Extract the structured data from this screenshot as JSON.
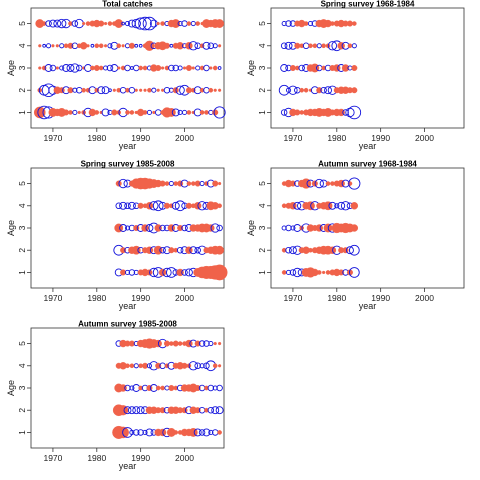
{
  "chart_data": [
    {
      "type": "scatter",
      "title": "Total catches",
      "xlabel": "year",
      "ylabel": "Age",
      "xlim": [
        1965,
        2009
      ],
      "ylim": [
        0.3,
        5.7
      ],
      "xticks": [
        1970,
        1980,
        1990,
        2000
      ],
      "yticks": [
        1,
        2,
        3,
        4,
        5
      ],
      "year_range": [
        1967,
        2008
      ],
      "symbols": [
        "negative: filled red",
        "positive: open blue"
      ],
      "series": [
        {
          "age": 5,
          "residuals": [
            -0.6,
            -0.3,
            0.4,
            0.5,
            0.5,
            0.6,
            0.6,
            -0.3,
            0.4,
            0.6,
            -0.2,
            -0.3,
            -0.4,
            -0.5,
            -0.4,
            -0.2,
            -0.3,
            -0.3,
            -0.6,
            0.2,
            0.3,
            0.5,
            0.6,
            0.8,
            0.9,
            0.9,
            0.5,
            -0.2,
            -0.3,
            0.3,
            -0.5,
            -0.6,
            0.3,
            0.4,
            -0.3,
            0.3,
            -0.3,
            -0.2,
            -0.6,
            -0.5,
            -0.6,
            -0.6
          ]
        },
        {
          "age": 4,
          "residuals": [
            -0.2,
            0.2,
            0.3,
            -0.2,
            -0.2,
            0.3,
            -0.3,
            -0.4,
            0.4,
            -0.3,
            -0.5,
            -0.2,
            0.2,
            -0.3,
            -0.3,
            -0.2,
            0.3,
            0.5,
            -0.3,
            -0.2,
            0.3,
            -0.4,
            0.2,
            0.2,
            -0.3,
            -0.7,
            0.4,
            -0.5,
            -0.6,
            -0.4,
            0.2,
            -0.4,
            -0.5,
            0.3,
            -0.5,
            0.6,
            0.4,
            -0.3,
            0.5,
            0.4,
            0.3,
            -0.2
          ]
        },
        {
          "age": 3,
          "residuals": [
            -0.2,
            -0.3,
            0.5,
            0.4,
            -0.2,
            0.3,
            0.5,
            0.5,
            0.6,
            0.4,
            -0.2,
            0.5,
            -0.3,
            -0.4,
            -0.3,
            0.3,
            0.4,
            0.5,
            -0.2,
            -0.3,
            0.4,
            0.2,
            0.4,
            -0.3,
            -0.3,
            0.3,
            -0.5,
            -0.4,
            -0.2,
            -0.3,
            0.4,
            0.4,
            0.3,
            -0.2,
            -0.4,
            -0.2,
            0.3,
            -0.3,
            0.4,
            -0.2,
            -0.3,
            0.2
          ]
        },
        {
          "age": 2,
          "residuals": [
            -0.3,
            0.7,
            0.9,
            0.6,
            -0.5,
            -0.4,
            0.5,
            -0.4,
            0.3,
            0.4,
            -0.3,
            -0.3,
            0.5,
            -0.3,
            0.5,
            0.5,
            0.2,
            -0.2,
            -0.3,
            0.4,
            -0.3,
            0.4,
            -0.2,
            -0.2,
            -0.2,
            -0.3,
            0.3,
            -0.2,
            -0.2,
            0.4,
            0.3,
            -0.4,
            0.6,
            0.7,
            -0.4,
            -0.3,
            0.5,
            -0.3,
            0.4,
            -0.3,
            -0.2,
            -0.2
          ]
        },
        {
          "age": 1,
          "residuals": [
            -0.8,
            0.9,
            0.8,
            -0.6,
            -0.5,
            -0.6,
            -0.4,
            -0.3,
            0.3,
            -0.2,
            -0.3,
            0.6,
            -0.5,
            -0.3,
            -0.2,
            0.5,
            0.3,
            -0.4,
            -0.3,
            0.6,
            -0.3,
            -0.3,
            -0.2,
            -0.5,
            -0.3,
            0.3,
            -0.2,
            0.4,
            -0.3,
            -0.7,
            -0.6,
            0.5,
            0.3,
            0.3,
            -0.3,
            -0.2,
            0.5,
            -0.3,
            -0.3,
            0.3,
            -0.4,
            0.8
          ]
        }
      ]
    },
    {
      "type": "scatter",
      "title": "Spring survey 1968-1984",
      "xlabel": "year",
      "ylabel": "Age",
      "xlim": [
        1965,
        2009
      ],
      "ylim": [
        0.3,
        5.7
      ],
      "xticks": [
        1970,
        1980,
        1990,
        2000
      ],
      "yticks": [
        1,
        2,
        3,
        4,
        5
      ],
      "year_range": [
        1968,
        1984
      ],
      "symbols": [
        "negative: filled red",
        "positive: open blue"
      ],
      "series": [
        {
          "age": 5,
          "residuals": [
            0.3,
            0.4,
            0.4,
            -0.4,
            -0.5,
            -0.3,
            0.3,
            0.4,
            -0.5,
            -0.6,
            -0.5,
            -0.3,
            -0.4,
            -0.5,
            -0.4,
            -0.4,
            -0.3
          ]
        },
        {
          "age": 4,
          "residuals": [
            0.4,
            0.5,
            0.5,
            -0.4,
            -0.3,
            0.4,
            -0.3,
            -0.3,
            0.3,
            -0.3,
            -0.3,
            0.6,
            0.7,
            -0.5,
            0.5,
            -0.3,
            0.3
          ]
        },
        {
          "age": 3,
          "residuals": [
            0.5,
            0.4,
            -0.4,
            -0.3,
            0.4,
            0.5,
            -0.5,
            -0.6,
            0.4,
            -0.3,
            0.4,
            -0.4,
            -0.5,
            0.5,
            -0.5,
            0.3,
            -0.4
          ]
        },
        {
          "age": 2,
          "residuals": [
            0.7,
            0.3,
            0.6,
            0.4,
            -0.3,
            -0.3,
            -0.2,
            0.5,
            -0.4,
            0.4,
            0.5,
            0.6,
            -0.4,
            -0.5,
            -0.5,
            -0.4,
            -0.4
          ]
        },
        {
          "age": 1,
          "residuals": [
            0.4,
            0.6,
            -0.5,
            -0.4,
            -0.3,
            -0.4,
            -0.5,
            -0.5,
            -0.6,
            -0.5,
            -0.6,
            -0.4,
            -0.5,
            -0.5,
            0.4,
            0.6,
            0.9
          ]
        }
      ]
    },
    {
      "type": "scatter",
      "title": "Spring survey 1985-2008",
      "xlabel": "year",
      "ylabel": "Age",
      "xlim": [
        1965,
        2009
      ],
      "ylim": [
        0.3,
        5.7
      ],
      "xticks": [
        1970,
        1980,
        1990,
        2000
      ],
      "yticks": [
        1,
        2,
        3,
        4,
        5
      ],
      "year_range": [
        1985,
        2008
      ],
      "symbols": [
        "negative: filled red",
        "positive: open blue"
      ],
      "series": [
        {
          "age": 5,
          "residuals": [
            -0.4,
            0.6,
            0.5,
            -0.4,
            -0.7,
            -0.8,
            -0.8,
            -0.7,
            -0.6,
            -0.5,
            -0.4,
            -0.3,
            0.3,
            -0.3,
            -0.4,
            0.5,
            -0.3,
            -0.3,
            -0.4,
            0.3,
            -0.3,
            0.5,
            -0.4,
            -0.2
          ]
        },
        {
          "age": 4,
          "residuals": [
            0.4,
            0.5,
            0.4,
            0.5,
            0.4,
            -0.4,
            -0.3,
            -0.5,
            0.6,
            0.7,
            0.5,
            -0.4,
            -0.3,
            0.5,
            0.7,
            0.4,
            -0.4,
            -0.3,
            -0.5,
            0.6,
            0.5,
            -0.6,
            -0.5,
            -0.3
          ]
        },
        {
          "age": 3,
          "residuals": [
            -0.6,
            0.5,
            0.3,
            0.4,
            -0.4,
            0.5,
            -0.5,
            0.5,
            0.7,
            -0.5,
            0.4,
            0.4,
            -0.5,
            0.5,
            -0.4,
            0.4,
            0.5,
            -0.5,
            -0.5,
            -0.6,
            -0.6,
            -0.5,
            0.6,
            0.4
          ]
        },
        {
          "age": 2,
          "residuals": [
            0.7,
            -0.4,
            0.4,
            -0.5,
            -0.6,
            0.4,
            -0.4,
            -0.5,
            0.5,
            -0.6,
            0.4,
            0.5,
            -0.4,
            -0.3,
            0.4,
            0.5,
            -0.5,
            0.5,
            0.4,
            0.6,
            -0.4,
            -0.5,
            -0.6,
            -0.6
          ]
        },
        {
          "age": 1,
          "residuals": [
            0.5,
            -0.4,
            0.3,
            0.4,
            0.3,
            -0.4,
            -0.5,
            -0.4,
            0.6,
            0.7,
            -0.5,
            0.6,
            0.7,
            0.4,
            -0.5,
            0.4,
            0.5,
            0.6,
            -0.6,
            -0.8,
            -0.9,
            -0.9,
            -1.0,
            -1.1
          ]
        }
      ]
    },
    {
      "type": "scatter",
      "title": "Autumn survey 1968-1984",
      "xlabel": "year",
      "ylabel": "Age",
      "xlim": [
        1965,
        2009
      ],
      "ylim": [
        0.3,
        5.7
      ],
      "xticks": [
        1970,
        1980,
        1990,
        2000
      ],
      "yticks": [
        1,
        2,
        3,
        4,
        5
      ],
      "year_range": [
        1968,
        1984
      ],
      "symbols": [
        "negative: filled red",
        "positive: open blue"
      ],
      "series": [
        {
          "age": 5,
          "residuals": [
            -0.3,
            -0.5,
            -0.4,
            0.4,
            -0.5,
            -0.7,
            0.5,
            -0.4,
            0.6,
            0.5,
            -0.3,
            -0.3,
            -0.4,
            -0.5,
            0.5,
            -0.3,
            0.8
          ]
        },
        {
          "age": 4,
          "residuals": [
            -0.3,
            -0.4,
            -0.5,
            0.5,
            0.6,
            -0.5,
            -0.6,
            0.6,
            -0.4,
            -0.5,
            -0.6,
            0.5,
            0.3,
            0.5,
            0.6,
            0.4,
            -0.5
          ]
        },
        {
          "age": 3,
          "residuals": [
            0.3,
            0.4,
            0.3,
            0.5,
            -0.3,
            0.6,
            -0.5,
            -0.4,
            -0.5,
            0.5,
            -0.6,
            0.6,
            -0.7,
            -0.6,
            -0.7,
            -0.6,
            -0.5
          ]
        },
        {
          "age": 2,
          "residuals": [
            -0.3,
            0.4,
            0.5,
            0.6,
            -0.4,
            -0.5,
            -0.3,
            -0.4,
            -0.5,
            -0.6,
            -0.6,
            -0.5,
            0.6,
            -0.4,
            -0.4,
            0.5,
            0.7
          ]
        },
        {
          "age": 1,
          "residuals": [
            -0.3,
            0.3,
            0.4,
            0.6,
            0.5,
            -0.6,
            -0.7,
            -0.5,
            -0.3,
            -0.2,
            -0.3,
            -0.4,
            -0.5,
            -0.4,
            0.4,
            -0.4,
            0.7
          ]
        }
      ]
    },
    {
      "type": "scatter",
      "title": "Autumn survey 1985-2008",
      "xlabel": "year",
      "ylabel": "Age",
      "xlim": [
        1965,
        2009
      ],
      "ylim": [
        0.3,
        5.7
      ],
      "xticks": [
        1970,
        1980,
        1990,
        2000
      ],
      "yticks": [
        1,
        2,
        3,
        4,
        5
      ],
      "year_range": [
        1985,
        2008
      ],
      "symbols": [
        "negative: filled red",
        "positive: open blue"
      ],
      "series": [
        {
          "age": 5,
          "residuals": [
            0.4,
            -0.5,
            -0.4,
            -0.4,
            0.3,
            -0.5,
            -0.6,
            -0.7,
            -0.6,
            -0.5,
            0.6,
            -0.4,
            -0.3,
            -0.4,
            -0.3,
            -0.3,
            -0.5,
            0.5,
            -0.4,
            0.4,
            0.4,
            0.3,
            -0.2,
            -0.2
          ]
        },
        {
          "age": 4,
          "residuals": [
            -0.4,
            -0.5,
            -0.3,
            -0.3,
            0.3,
            -0.3,
            -0.4,
            0.3,
            0.6,
            -0.4,
            0.4,
            -0.3,
            0.5,
            -0.4,
            -0.5,
            -0.4,
            -0.3,
            0.6,
            0.4,
            0.3,
            0.4,
            0.7,
            -0.3,
            -0.2
          ]
        },
        {
          "age": 3,
          "residuals": [
            -0.6,
            -0.5,
            0.4,
            0.3,
            0.5,
            -0.3,
            0.4,
            -0.4,
            0.5,
            -0.3,
            -0.3,
            0.3,
            -0.4,
            -0.3,
            0.4,
            -0.5,
            -0.5,
            -0.6,
            -0.4,
            0.4,
            -0.3,
            0.4,
            0.3,
            0.4
          ]
        },
        {
          "age": 2,
          "residuals": [
            -0.8,
            -0.7,
            0.5,
            0.5,
            0.5,
            0.5,
            0.5,
            -0.5,
            -0.5,
            -0.4,
            -0.4,
            0.4,
            -0.5,
            -0.5,
            -0.4,
            -0.4,
            0.5,
            -0.5,
            -0.4,
            0.4,
            -0.3,
            0.4,
            0.5,
            0.5
          ]
        },
        {
          "age": 1,
          "residuals": [
            -0.9,
            -0.8,
            0.7,
            0.3,
            0.4,
            0.4,
            0.3,
            0.5,
            0.4,
            -0.5,
            -0.5,
            0.6,
            -0.6,
            -0.3,
            -0.3,
            -0.5,
            -0.5,
            -0.6,
            0.5,
            0.4,
            0.5,
            0.3,
            0.4,
            -0.3
          ]
        }
      ]
    }
  ],
  "colors": {
    "negative": "#f0624a",
    "positive": "#1414dc",
    "frame": "#333333"
  }
}
